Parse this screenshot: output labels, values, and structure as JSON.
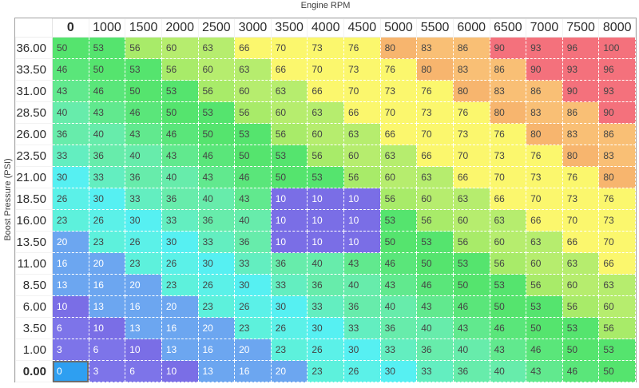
{
  "title": "Engine RPM",
  "y_axis_label": "Boost Pressure (PSI)",
  "columns": [
    "0",
    "1000",
    "1500",
    "2000",
    "2500",
    "3000",
    "3500",
    "4000",
    "4500",
    "5000",
    "5500",
    "6000",
    "6500",
    "7000",
    "7500",
    "8000"
  ],
  "rows": [
    {
      "label": "36.00",
      "values": [
        50,
        53,
        56,
        60,
        63,
        66,
        70,
        73,
        76,
        80,
        83,
        86,
        90,
        93,
        96,
        100
      ]
    },
    {
      "label": "33.50",
      "values": [
        46,
        50,
        53,
        56,
        60,
        63,
        66,
        70,
        73,
        76,
        80,
        83,
        86,
        90,
        93,
        96
      ]
    },
    {
      "label": "31.00",
      "values": [
        43,
        46,
        50,
        53,
        56,
        60,
        63,
        66,
        70,
        73,
        76,
        80,
        83,
        86,
        90,
        93
      ]
    },
    {
      "label": "28.50",
      "values": [
        40,
        43,
        46,
        50,
        53,
        56,
        60,
        63,
        66,
        70,
        73,
        76,
        80,
        83,
        86,
        90
      ]
    },
    {
      "label": "26.00",
      "values": [
        36,
        40,
        43,
        46,
        50,
        53,
        56,
        60,
        63,
        66,
        70,
        73,
        76,
        80,
        83,
        86
      ]
    },
    {
      "label": "23.50",
      "values": [
        33,
        36,
        40,
        43,
        46,
        50,
        53,
        56,
        60,
        63,
        66,
        70,
        73,
        76,
        80,
        83
      ]
    },
    {
      "label": "21.00",
      "values": [
        30,
        33,
        36,
        40,
        43,
        46,
        50,
        53,
        56,
        60,
        63,
        66,
        70,
        73,
        76,
        80
      ]
    },
    {
      "label": "18.50",
      "values": [
        26,
        30,
        33,
        36,
        40,
        43,
        10,
        10,
        10,
        56,
        60,
        63,
        66,
        70,
        73,
        76
      ]
    },
    {
      "label": "16.00",
      "values": [
        23,
        26,
        30,
        33,
        36,
        40,
        10,
        10,
        10,
        53,
        56,
        60,
        63,
        66,
        70,
        73
      ]
    },
    {
      "label": "13.50",
      "values": [
        20,
        23,
        26,
        30,
        33,
        36,
        10,
        10,
        10,
        50,
        53,
        56,
        60,
        63,
        66,
        70
      ]
    },
    {
      "label": "11.00",
      "values": [
        16,
        20,
        23,
        26,
        30,
        33,
        36,
        40,
        43,
        46,
        50,
        53,
        56,
        60,
        63,
        66
      ]
    },
    {
      "label": "8.50",
      "values": [
        13,
        16,
        20,
        23,
        26,
        30,
        33,
        36,
        40,
        43,
        46,
        50,
        53,
        56,
        60,
        63
      ]
    },
    {
      "label": "6.00",
      "values": [
        10,
        13,
        16,
        20,
        23,
        26,
        30,
        33,
        36,
        40,
        43,
        46,
        50,
        53,
        56,
        60
      ]
    },
    {
      "label": "3.50",
      "values": [
        6,
        10,
        13,
        16,
        20,
        23,
        26,
        30,
        33,
        36,
        40,
        43,
        46,
        50,
        53,
        56
      ]
    },
    {
      "label": "1.00",
      "values": [
        3,
        6,
        10,
        13,
        16,
        20,
        23,
        26,
        30,
        33,
        36,
        40,
        43,
        46,
        50,
        53
      ]
    },
    {
      "label": "0.00",
      "values": [
        0,
        3,
        6,
        10,
        13,
        16,
        20,
        23,
        26,
        30,
        33,
        36,
        40,
        43,
        46,
        50
      ]
    }
  ],
  "selected": {
    "row_label": "0.00",
    "col_label": "0",
    "value": 0
  },
  "style": {
    "colormap": {
      "0": "#2e9ff1",
      "3": "#7d74e9",
      "6": "#7d74e9",
      "10": "#7a6ee6",
      "13": "#6ca6f0",
      "16": "#6ca6f0",
      "20": "#6ca6f0",
      "23": "#5df1dc",
      "26": "#5bf1e8",
      "30": "#56f0f2",
      "33": "#63eec0",
      "36": "#67ecab",
      "40": "#67ecab",
      "43": "#61e98e",
      "46": "#5ae67a",
      "50": "#55e46e",
      "53": "#55e46e",
      "56": "#a8eb69",
      "60": "#b6ed6e",
      "63": "#b6ed6e",
      "66": "#fbf76d",
      "70": "#fbf76d",
      "73": "#fbf76d",
      "76": "#fbf76d",
      "80": "#f7b56e",
      "83": "#f9bf75",
      "86": "#f9bf75",
      "90": "#f4717c",
      "93": "#f4717c",
      "96": "#f4717c",
      "100": "#f4717c"
    },
    "light_text_max_value": 20,
    "cell_text_light": "#ffffff",
    "cell_text_dark": "#454545",
    "selected_bg": "#2e9ff1",
    "selected_border": "#6d6d6d",
    "grid_dash_color": "#ffffff",
    "header_text": "#2d2d2d",
    "table_border": "#a3a3a3"
  }
}
